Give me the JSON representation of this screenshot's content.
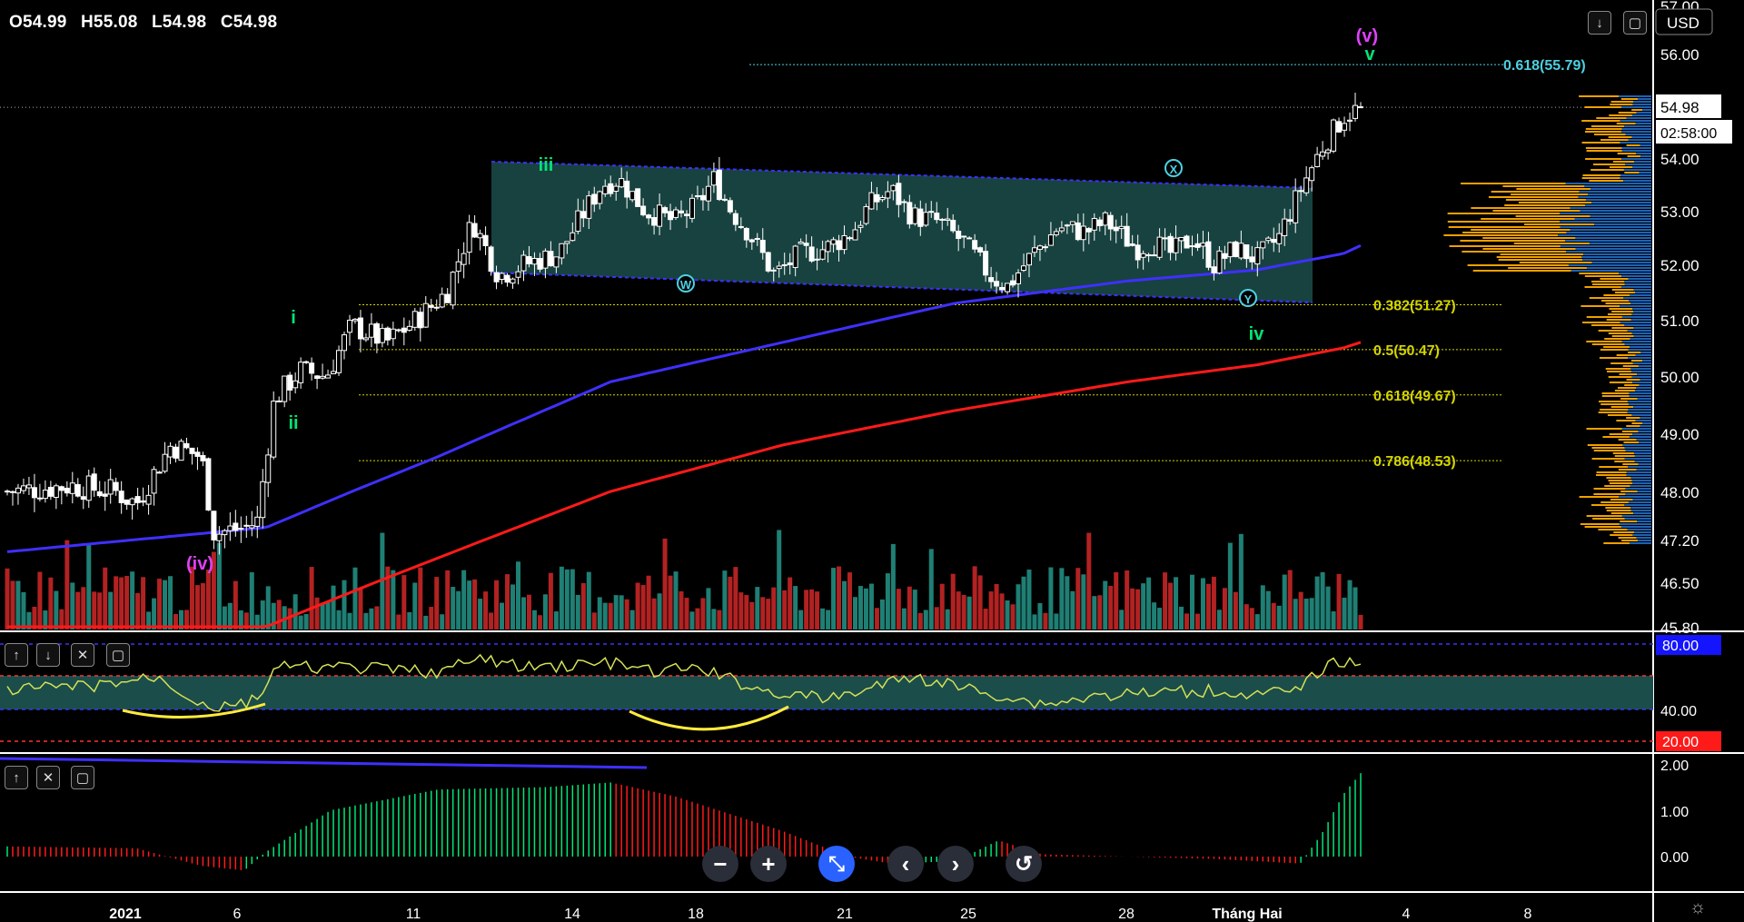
{
  "ohlc": {
    "open": "O54.99",
    "high": "H55.08",
    "low": "L54.98",
    "close": "C54.98"
  },
  "currency": "USD",
  "last_price": "54.98",
  "countdown": "02:58:00",
  "colors": {
    "up": "#26a69a",
    "down": "#ef5350",
    "volume_up": "#1f7f74",
    "volume_down": "#b22222",
    "ma_fast": "#3f30ff",
    "ma_slow": "#ff1a1a",
    "fib": "#d4d400",
    "fib_top": "#4dd0e1",
    "channel_fill": "#1b4d4a",
    "rsi": "#d4e157",
    "rsi_band": "#1b4d4a"
  },
  "chart_data": [
    {
      "type": "candlestick",
      "yticks": [
        "57.00",
        "56.00",
        "55.00",
        "54.00",
        "53.00",
        "52.00",
        "51.00",
        "50.00",
        "49.00",
        "48.00",
        "47.20",
        "46.50",
        "45.80"
      ],
      "ylim": [
        45.8,
        57.0
      ],
      "scale": "log",
      "xticks": [
        "2021",
        "6",
        "11",
        "14",
        "18",
        "21",
        "25",
        "28",
        "Tháng Hai",
        "4",
        "8"
      ],
      "fib_levels": [
        {
          "label": "0.618(55.79)",
          "value": 55.79
        },
        {
          "label": "0.382(51.27)",
          "value": 51.27
        },
        {
          "label": "0.5(50.47)",
          "value": 50.47
        },
        {
          "label": "0.618(49.67)",
          "value": 49.67
        },
        {
          "label": "0.786(48.53)",
          "value": 48.53
        }
      ],
      "wave_labels": [
        {
          "text": "(v)",
          "color": "#e040fb"
        },
        {
          "text": "v",
          "color": "#00e676"
        },
        {
          "text": "iii",
          "color": "#00e676"
        },
        {
          "text": "i",
          "color": "#00e676"
        },
        {
          "text": "ii",
          "color": "#00e676"
        },
        {
          "text": "(iv)",
          "color": "#e040fb"
        },
        {
          "text": "iv",
          "color": "#00e676"
        },
        {
          "text": "W",
          "color": "#4dd0e1",
          "circled": true
        },
        {
          "text": "X",
          "color": "#4dd0e1",
          "circled": true
        },
        {
          "text": "Y",
          "color": "#4dd0e1",
          "circled": true
        }
      ],
      "series": [
        {
          "kind": "candles",
          "start": 48.0,
          "close": 54.98
        },
        {
          "kind": "moving_average_fast"
        },
        {
          "kind": "moving_average_slow"
        },
        {
          "kind": "volume"
        }
      ]
    },
    {
      "type": "line",
      "panel": "RSI",
      "yticks": [
        "80.00",
        "40.00",
        "20.00"
      ],
      "ylim": [
        20,
        80
      ],
      "bands": [
        40,
        60
      ]
    },
    {
      "type": "bar",
      "panel": "oscillator",
      "yticks": [
        "2.00",
        "1.00",
        "0.00"
      ],
      "ylim": [
        -0.6,
        2.0
      ]
    }
  ]
}
